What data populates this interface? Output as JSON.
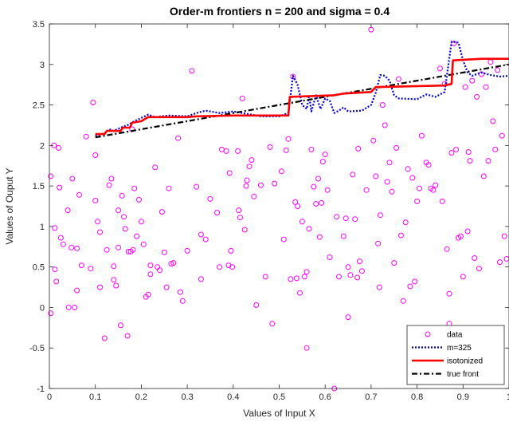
{
  "chart_data": {
    "type": "scatter",
    "title": "Order-m frontiers n = 200 and sigma = 0.4",
    "xlabel": "Values of Input X",
    "ylabel": "Values of Ouput Y",
    "xlim": [
      0,
      1
    ],
    "ylim": [
      -1,
      3.5
    ],
    "xticks": [
      "0",
      "0.1",
      "0.2",
      "0.3",
      "0.4",
      "0.5",
      "0.6",
      "0.7",
      "0.8",
      "0.9",
      "1"
    ],
    "yticks": [
      "-1",
      "-0.5",
      "0",
      "0.5",
      "1",
      "1.5",
      "2",
      "2.5",
      "3",
      "3.5"
    ],
    "grid": false,
    "legend_position": "bottom-right",
    "colors": {
      "data": "#ff00ff",
      "m325": "#0000cc",
      "isotonized": "#ff0000",
      "true_front": "#000000"
    },
    "legend": [
      "data",
      "m=325",
      "isotonized",
      "true front"
    ],
    "series": [
      {
        "name": "data",
        "type": "scatter",
        "points": [
          [
            0.003,
            1.62
          ],
          [
            0.003,
            -0.07
          ],
          [
            0.01,
            2.0
          ],
          [
            0.012,
            0.47
          ],
          [
            0.015,
            0.32
          ],
          [
            0.012,
            0.98
          ],
          [
            0.02,
            1.97
          ],
          [
            0.022,
            1.48
          ],
          [
            0.025,
            0.86
          ],
          [
            0.03,
            0.78
          ],
          [
            0.04,
            1.2
          ],
          [
            0.042,
            0.0
          ],
          [
            0.048,
            0.74
          ],
          [
            0.05,
            1.59
          ],
          [
            0.055,
            0.0
          ],
          [
            0.06,
            0.21
          ],
          [
            0.065,
            1.39
          ],
          [
            0.07,
            0.52
          ],
          [
            0.08,
            2.11
          ],
          [
            0.09,
            0.48
          ],
          [
            0.095,
            2.53
          ],
          [
            0.1,
            1.88
          ],
          [
            0.1,
            1.32
          ],
          [
            0.11,
            0.93
          ],
          [
            0.105,
            1.06
          ],
          [
            0.11,
            0.25
          ],
          [
            0.12,
            -0.38
          ],
          [
            0.125,
            0.71
          ],
          [
            0.13,
            1.51
          ],
          [
            0.135,
            1.59
          ],
          [
            0.14,
            0.51
          ],
          [
            0.14,
            0.34
          ],
          [
            0.145,
            0.27
          ],
          [
            0.15,
            1.2
          ],
          [
            0.15,
            0.74
          ],
          [
            0.155,
            -0.22
          ],
          [
            0.158,
            1.38
          ],
          [
            0.162,
            1.12
          ],
          [
            0.165,
            0.97
          ],
          [
            0.17,
            -0.35
          ],
          [
            0.172,
            0.69
          ],
          [
            0.177,
            0.69
          ],
          [
            0.18,
            2.2
          ],
          [
            0.182,
            0.71
          ],
          [
            0.185,
            1.47
          ],
          [
            0.19,
            0.88
          ],
          [
            0.195,
            1.33
          ],
          [
            0.2,
            1.06
          ],
          [
            0.205,
            0.78
          ],
          [
            0.21,
            0.13
          ],
          [
            0.215,
            0.16
          ],
          [
            0.22,
            0.41
          ],
          [
            0.23,
            1.73
          ],
          [
            0.235,
            0.5
          ],
          [
            0.24,
            0.46
          ],
          [
            0.245,
            1.18
          ],
          [
            0.25,
            0.68
          ],
          [
            0.255,
            0.25
          ],
          [
            0.26,
            1.47
          ],
          [
            0.265,
            0.54
          ],
          [
            0.27,
            0.55
          ],
          [
            0.28,
            2.09
          ],
          [
            0.285,
            0.19
          ],
          [
            0.29,
            0.08
          ],
          [
            0.3,
            0.7
          ],
          [
            0.31,
            2.92
          ],
          [
            0.32,
            1.49
          ],
          [
            0.33,
            0.9
          ],
          [
            0.34,
            0.84
          ],
          [
            0.35,
            1.34
          ],
          [
            0.365,
            1.17
          ],
          [
            0.37,
            0.5
          ],
          [
            0.375,
            1.95
          ],
          [
            0.385,
            1.93
          ],
          [
            0.39,
            0.52
          ],
          [
            0.392,
            1.66
          ],
          [
            0.395,
            0.7
          ],
          [
            0.398,
            0.5
          ],
          [
            0.41,
            1.93
          ],
          [
            0.412,
            1.2
          ],
          [
            0.415,
            1.11
          ],
          [
            0.42,
            2.58
          ],
          [
            0.425,
            0.96
          ],
          [
            0.428,
            1.5
          ],
          [
            0.435,
            1.74
          ],
          [
            0.44,
            1.82
          ],
          [
            0.445,
            1.37
          ],
          [
            0.45,
            0.03
          ],
          [
            0.46,
            1.51
          ],
          [
            0.47,
            0.38
          ],
          [
            0.48,
            1.98
          ],
          [
            0.485,
            -0.2
          ],
          [
            0.49,
            1.53
          ],
          [
            0.505,
            1.68
          ],
          [
            0.51,
            0.84
          ],
          [
            0.515,
            1.94
          ],
          [
            0.52,
            2.08
          ],
          [
            0.525,
            0.35
          ],
          [
            0.53,
            2.85
          ],
          [
            0.535,
            1.3
          ],
          [
            0.538,
            0.36
          ],
          [
            0.54,
            1.25
          ],
          [
            0.545,
            0.18
          ],
          [
            0.55,
            1.06
          ],
          [
            0.555,
            0.38
          ],
          [
            0.56,
            -0.5
          ],
          [
            0.56,
            0.44
          ],
          [
            0.565,
            0.97
          ],
          [
            0.57,
            1.95
          ],
          [
            0.575,
            1.49
          ],
          [
            0.58,
            1.28
          ],
          [
            0.585,
            1.59
          ],
          [
            0.588,
            0.87
          ],
          [
            0.592,
            1.29
          ],
          [
            0.595,
            1.8
          ],
          [
            0.6,
            1.89
          ],
          [
            0.605,
            1.45
          ],
          [
            0.61,
            0.62
          ],
          [
            0.62,
            -1.0
          ],
          [
            0.625,
            1.12
          ],
          [
            0.63,
            0.38
          ],
          [
            0.64,
            0.88
          ],
          [
            0.645,
            1.1
          ],
          [
            0.65,
            0.5
          ],
          [
            0.655,
            0.4
          ],
          [
            0.66,
            1.64
          ],
          [
            0.665,
            1.09
          ],
          [
            0.67,
            0.37
          ],
          [
            0.672,
            1.96
          ],
          [
            0.675,
            0.57
          ],
          [
            0.68,
            0.45
          ],
          [
            0.69,
            1.45
          ],
          [
            0.7,
            3.43
          ],
          [
            0.705,
            2.06
          ],
          [
            0.71,
            1.62
          ],
          [
            0.715,
            0.79
          ],
          [
            0.718,
            0.25
          ],
          [
            0.72,
            1.14
          ],
          [
            0.725,
            2.5
          ],
          [
            0.73,
            2.25
          ],
          [
            0.735,
            1.55
          ],
          [
            0.74,
            1.79
          ],
          [
            0.745,
            1.43
          ],
          [
            0.75,
            0.55
          ],
          [
            0.755,
            1.97
          ],
          [
            0.76,
            2.82
          ],
          [
            0.765,
            0.89
          ],
          [
            0.77,
            0.08
          ],
          [
            0.775,
            1.05
          ],
          [
            0.78,
            1.71
          ],
          [
            0.785,
            0.26
          ],
          [
            0.79,
            1.6
          ],
          [
            0.795,
            0.32
          ],
          [
            0.8,
            1.31
          ],
          [
            0.805,
            1.47
          ],
          [
            0.81,
            2.12
          ],
          [
            0.82,
            1.79
          ],
          [
            0.825,
            1.76
          ],
          [
            0.83,
            1.47
          ],
          [
            0.835,
            1.45
          ],
          [
            0.84,
            1.51
          ],
          [
            0.85,
            2.95
          ],
          [
            0.855,
            1.31
          ],
          [
            0.86,
            2.76
          ],
          [
            0.865,
            0.72
          ],
          [
            0.87,
            0.17
          ],
          [
            0.875,
            1.91
          ],
          [
            0.88,
            3.26
          ],
          [
            0.885,
            1.95
          ],
          [
            0.89,
            0.86
          ],
          [
            0.895,
            0.88
          ],
          [
            0.9,
            0.38
          ],
          [
            0.905,
            2.72
          ],
          [
            0.91,
            0.94
          ],
          [
            0.912,
            1.92
          ],
          [
            0.915,
            1.81
          ],
          [
            0.92,
            2.8
          ],
          [
            0.925,
            0.61
          ],
          [
            0.93,
            2.6
          ],
          [
            0.935,
            0.48
          ],
          [
            0.94,
            2.88
          ],
          [
            0.945,
            1.62
          ],
          [
            0.95,
            2.72
          ],
          [
            0.955,
            1.81
          ],
          [
            0.96,
            3.03
          ],
          [
            0.965,
            2.3
          ],
          [
            0.97,
            1.95
          ],
          [
            0.975,
            2.93
          ],
          [
            0.98,
            0.56
          ],
          [
            0.985,
            2.12
          ],
          [
            0.99,
            0.88
          ],
          [
            0.995,
            0.6
          ],
          [
            0.87,
            -0.2
          ],
          [
            0.65,
            -0.12
          ],
          [
            0.33,
            0.35
          ],
          [
            0.22,
            0.52
          ],
          [
            0.06,
            0.73
          ],
          [
            0.43,
            1.57
          ]
        ]
      },
      {
        "name": "m=325",
        "type": "line",
        "points": [
          [
            0.1,
            2.12
          ],
          [
            0.12,
            2.15
          ],
          [
            0.13,
            2.2
          ],
          [
            0.14,
            2.18
          ],
          [
            0.155,
            2.22
          ],
          [
            0.17,
            2.25
          ],
          [
            0.185,
            2.3
          ],
          [
            0.2,
            2.34
          ],
          [
            0.215,
            2.38
          ],
          [
            0.23,
            2.35
          ],
          [
            0.26,
            2.37
          ],
          [
            0.3,
            2.36
          ],
          [
            0.32,
            2.4
          ],
          [
            0.34,
            2.43
          ],
          [
            0.37,
            2.4
          ],
          [
            0.4,
            2.42
          ],
          [
            0.43,
            2.39
          ],
          [
            0.46,
            2.36
          ],
          [
            0.5,
            2.36
          ],
          [
            0.52,
            2.4
          ],
          [
            0.53,
            2.86
          ],
          [
            0.54,
            2.75
          ],
          [
            0.55,
            2.5
          ],
          [
            0.56,
            2.45
          ],
          [
            0.565,
            2.62
          ],
          [
            0.57,
            2.42
          ],
          [
            0.58,
            2.62
          ],
          [
            0.59,
            2.45
          ],
          [
            0.6,
            2.58
          ],
          [
            0.61,
            2.55
          ],
          [
            0.62,
            2.4
          ],
          [
            0.63,
            2.43
          ],
          [
            0.64,
            2.47
          ],
          [
            0.65,
            2.42
          ],
          [
            0.68,
            2.43
          ],
          [
            0.7,
            2.5
          ],
          [
            0.71,
            2.65
          ],
          [
            0.72,
            2.87
          ],
          [
            0.73,
            2.86
          ],
          [
            0.74,
            2.8
          ],
          [
            0.75,
            2.62
          ],
          [
            0.76,
            2.58
          ],
          [
            0.8,
            2.57
          ],
          [
            0.82,
            2.63
          ],
          [
            0.84,
            2.6
          ],
          [
            0.86,
            2.66
          ],
          [
            0.875,
            3.28
          ],
          [
            0.89,
            3.27
          ],
          [
            0.9,
            3.05
          ],
          [
            0.91,
            2.9
          ],
          [
            0.92,
            2.86
          ],
          [
            0.94,
            2.9
          ],
          [
            0.96,
            2.87
          ],
          [
            0.98,
            2.85
          ],
          [
            1.0,
            2.86
          ]
        ]
      },
      {
        "name": "isotonized",
        "type": "line",
        "points": [
          [
            0.1,
            2.14
          ],
          [
            0.12,
            2.14
          ],
          [
            0.125,
            2.18
          ],
          [
            0.155,
            2.18
          ],
          [
            0.16,
            2.22
          ],
          [
            0.175,
            2.22
          ],
          [
            0.18,
            2.28
          ],
          [
            0.2,
            2.3
          ],
          [
            0.215,
            2.35
          ],
          [
            0.3,
            2.35
          ],
          [
            0.32,
            2.36
          ],
          [
            0.4,
            2.37
          ],
          [
            0.52,
            2.37
          ],
          [
            0.523,
            2.6
          ],
          [
            0.62,
            2.62
          ],
          [
            0.64,
            2.64
          ],
          [
            0.7,
            2.66
          ],
          [
            0.71,
            2.72
          ],
          [
            0.86,
            2.74
          ],
          [
            0.875,
            2.76
          ],
          [
            0.878,
            3.05
          ],
          [
            0.94,
            3.07
          ],
          [
            1.0,
            3.07
          ]
        ]
      },
      {
        "name": "true front",
        "type": "line",
        "points": [
          [
            0.1,
            2.1
          ],
          [
            1.0,
            3.0
          ]
        ]
      }
    ]
  }
}
